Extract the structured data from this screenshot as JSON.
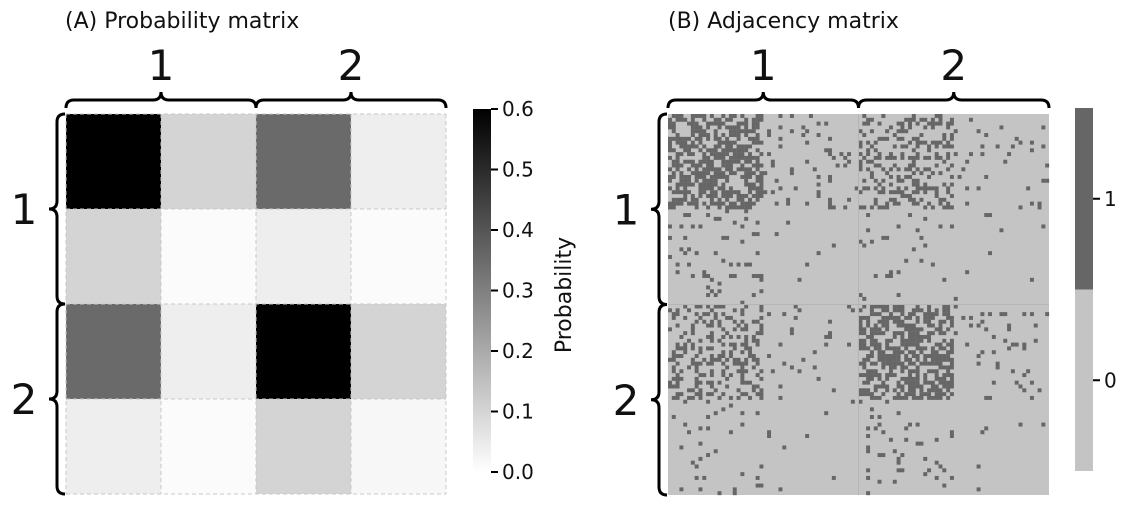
{
  "chart_data": [
    {
      "type": "heatmap",
      "title": "(A) Probability matrix",
      "block_labels": [
        "1",
        "2"
      ],
      "cells_per_block": 2,
      "values": [
        [
          0.6,
          0.1,
          0.35,
          0.04
        ],
        [
          0.1,
          0.01,
          0.04,
          0.01
        ],
        [
          0.35,
          0.04,
          0.6,
          0.1
        ],
        [
          0.04,
          0.01,
          0.1,
          0.02
        ]
      ],
      "colorbar": {
        "label": "Probability",
        "min": 0.0,
        "max": 0.6,
        "ticks": [
          "0.0",
          "0.1",
          "0.2",
          "0.3",
          "0.4",
          "0.5",
          "0.6"
        ]
      },
      "colormap": [
        "#ffffff",
        "#000000"
      ]
    },
    {
      "type": "heatmap",
      "title": "(B) Adjacency matrix",
      "block_labels": [
        "1",
        "2"
      ],
      "n_nodes": 100,
      "edge_density_by_quadrant": [
        [
          0.6,
          0.1,
          0.35,
          0.04
        ],
        [
          0.1,
          0.01,
          0.04,
          0.01
        ],
        [
          0.35,
          0.04,
          0.6,
          0.1
        ],
        [
          0.04,
          0.01,
          0.1,
          0.02
        ]
      ],
      "colorbar": {
        "ticks": [
          "0",
          "1"
        ],
        "colors": {
          "0": "#c4c4c4",
          "1": "#666666"
        }
      }
    }
  ]
}
